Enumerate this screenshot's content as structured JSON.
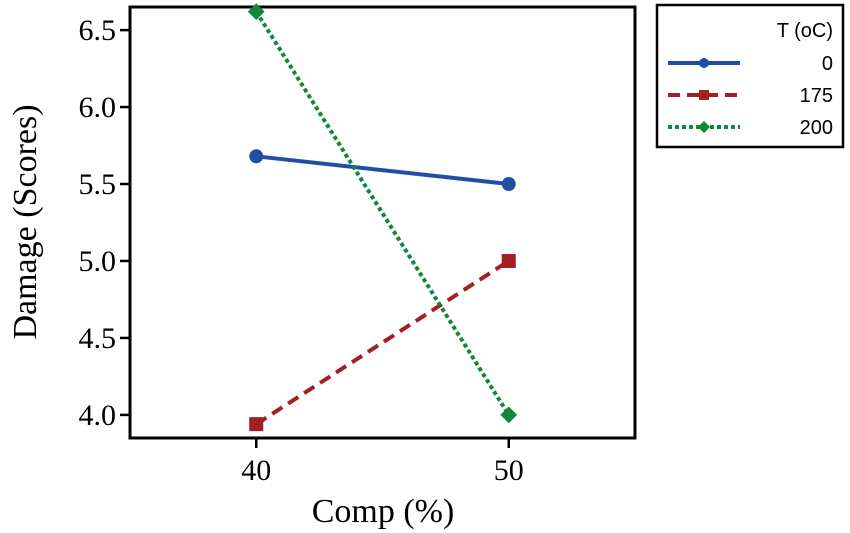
{
  "chart_data": {
    "type": "line",
    "xlabel": "Comp (%)",
    "ylabel": "Damage (Scores)",
    "x": [
      40,
      50
    ],
    "x_tick_labels": [
      "40",
      "50"
    ],
    "xlim": [
      35,
      55
    ],
    "ylim": [
      3.85,
      6.65
    ],
    "y_ticks": [
      4.0,
      4.5,
      5.0,
      5.5,
      6.0,
      6.5
    ],
    "y_tick_labels": [
      "4.0",
      "4.5",
      "5.0",
      "5.5",
      "6.0",
      "6.5"
    ],
    "grid": false,
    "legend": {
      "title": "T (oC)",
      "position": "right"
    },
    "series": [
      {
        "name": "0",
        "values": [
          5.68,
          5.5
        ],
        "color": "#1f4ea3",
        "dash": "solid",
        "marker": "circle"
      },
      {
        "name": "175",
        "values": [
          3.94,
          5.0
        ],
        "color": "#a41e22",
        "dash": "dashed",
        "marker": "square"
      },
      {
        "name": "200",
        "values": [
          6.62,
          4.0
        ],
        "color": "#12873a",
        "dash": "dotted",
        "marker": "diamond"
      }
    ]
  }
}
